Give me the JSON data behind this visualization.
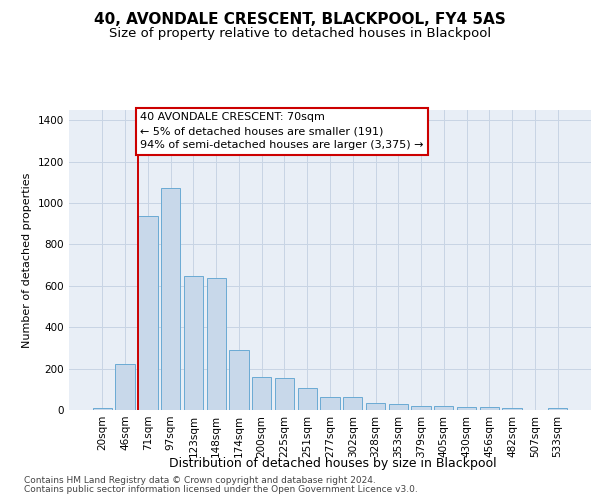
{
  "title": "40, AVONDALE CRESCENT, BLACKPOOL, FY4 5AS",
  "subtitle": "Size of property relative to detached houses in Blackpool",
  "xlabel": "Distribution of detached houses by size in Blackpool",
  "ylabel": "Number of detached properties",
  "categories": [
    "20sqm",
    "46sqm",
    "71sqm",
    "97sqm",
    "123sqm",
    "148sqm",
    "174sqm",
    "200sqm",
    "225sqm",
    "251sqm",
    "277sqm",
    "302sqm",
    "328sqm",
    "353sqm",
    "379sqm",
    "405sqm",
    "430sqm",
    "456sqm",
    "482sqm",
    "507sqm",
    "533sqm"
  ],
  "values": [
    10,
    220,
    940,
    1075,
    650,
    640,
    290,
    160,
    155,
    105,
    65,
    65,
    35,
    30,
    20,
    20,
    14,
    14,
    10,
    0,
    8
  ],
  "bar_color": "#c8d8ea",
  "bar_edge_color": "#6aaad4",
  "grid_color": "#c8d4e4",
  "background_color": "#e8eef6",
  "annotation_text": "40 AVONDALE CRESCENT: 70sqm\n← 5% of detached houses are smaller (191)\n94% of semi-detached houses are larger (3,375) →",
  "annotation_box_color": "#ffffff",
  "annotation_box_edge": "#cc0000",
  "ylim": [
    0,
    1450
  ],
  "yticks": [
    0,
    200,
    400,
    600,
    800,
    1000,
    1200,
    1400
  ],
  "footer_line1": "Contains HM Land Registry data © Crown copyright and database right 2024.",
  "footer_line2": "Contains public sector information licensed under the Open Government Licence v3.0.",
  "title_fontsize": 11,
  "subtitle_fontsize": 9.5,
  "xlabel_fontsize": 9,
  "ylabel_fontsize": 8,
  "tick_fontsize": 7.5,
  "annotation_fontsize": 8,
  "footer_fontsize": 6.5
}
